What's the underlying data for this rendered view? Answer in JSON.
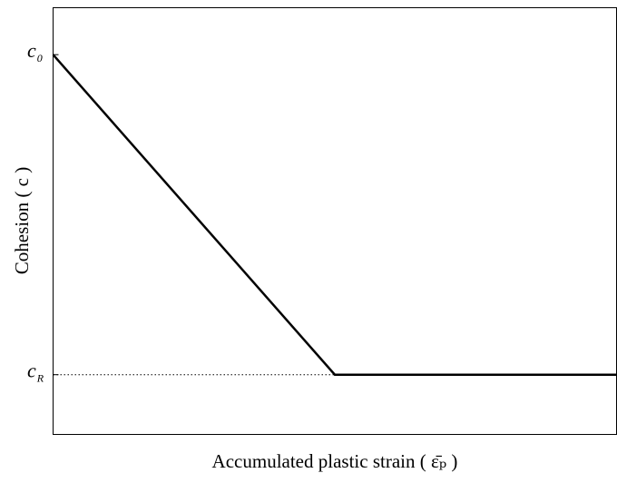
{
  "chart_data": {
    "type": "line",
    "x_label": "Accumulated plastic strain ( ε̄ₚ )",
    "y_label": "Cohesion ( c )",
    "x": [
      0,
      0.5,
      1
    ],
    "series": [
      {
        "name": "Cohesion",
        "color": "#000000",
        "values": [
          0.89,
          0.14,
          0.14
        ]
      }
    ],
    "xlim": [
      0,
      1
    ],
    "ylim": [
      0,
      1
    ],
    "yticks": [
      {
        "value": 0.89,
        "label": "c",
        "subscript": "0"
      },
      {
        "value": 0.14,
        "label": "c",
        "subscript": "R"
      }
    ]
  }
}
